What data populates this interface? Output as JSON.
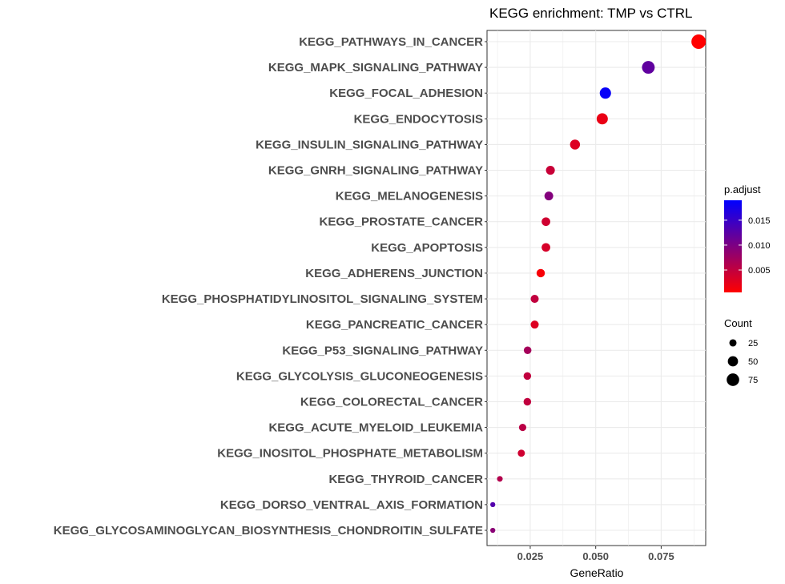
{
  "chart_data": {
    "type": "scatter",
    "title": "KEGG enrichment: TMP vs CTRL",
    "xlabel": "GeneRatio",
    "ylabel": "",
    "xlim": [
      0.0085,
      0.092
    ],
    "xticks": [
      0.025,
      0.05,
      0.075
    ],
    "xtick_labels": [
      "0.025",
      "0.050",
      "0.075"
    ],
    "grid": true,
    "legend_position": "right",
    "categories": [
      "KEGG_PATHWAYS_IN_CANCER",
      "KEGG_MAPK_SIGNALING_PATHWAY",
      "KEGG_FOCAL_ADHESION",
      "KEGG_ENDOCYTOSIS",
      "KEGG_INSULIN_SIGNALING_PATHWAY",
      "KEGG_GNRH_SIGNALING_PATHWAY",
      "KEGG_MELANOGENESIS",
      "KEGG_PROSTATE_CANCER",
      "KEGG_APOPTOSIS",
      "KEGG_ADHERENS_JUNCTION",
      "KEGG_PHOSPHATIDYLINOSITOL_SIGNALING_SYSTEM",
      "KEGG_PANCREATIC_CANCER",
      "KEGG_P53_SIGNALING_PATHWAY",
      "KEGG_GLYCOLYSIS_GLUCONEOGENESIS",
      "KEGG_COLORECTAL_CANCER",
      "KEGG_ACUTE_MYELOID_LEUKEMIA",
      "KEGG_INOSITOL_PHOSPHATE_METABOLISM",
      "KEGG_THYROID_CANCER",
      "KEGG_DORSO_VENTRAL_AXIS_FORMATION",
      "KEGG_GLYCOSAMINOGLYCAN_BIOSYNTHESIS_CHONDROITIN_SULFATE"
    ],
    "gene_ratio": [
      0.0893,
      0.0701,
      0.0537,
      0.0525,
      0.0421,
      0.0327,
      0.0321,
      0.031,
      0.031,
      0.029,
      0.0267,
      0.0267,
      0.024,
      0.0239,
      0.0239,
      0.0221,
      0.0216,
      0.0134,
      0.0107,
      0.0107
    ],
    "count": [
      90,
      70,
      55,
      54,
      43,
      34,
      33,
      32,
      32,
      30,
      28,
      28,
      25,
      25,
      25,
      23,
      22,
      14,
      11,
      11
    ],
    "p_adjust": [
      0.0005,
      0.012,
      0.0185,
      0.002,
      0.003,
      0.0045,
      0.0095,
      0.004,
      0.0035,
      0.001,
      0.005,
      0.003,
      0.007,
      0.005,
      0.005,
      0.0055,
      0.004,
      0.006,
      0.013,
      0.009
    ],
    "color_legend": {
      "title": "p.adjust",
      "range": [
        0.0005,
        0.019
      ],
      "ticks": [
        0.005,
        0.01,
        0.015
      ],
      "tick_labels": [
        "0.005",
        "0.010",
        "0.015"
      ],
      "low_color": "#ff0000",
      "high_color": "#0000ff"
    },
    "size_legend": {
      "title": "Count",
      "values": [
        25,
        50,
        75
      ],
      "labels": [
        "25",
        "50",
        "75"
      ]
    }
  }
}
